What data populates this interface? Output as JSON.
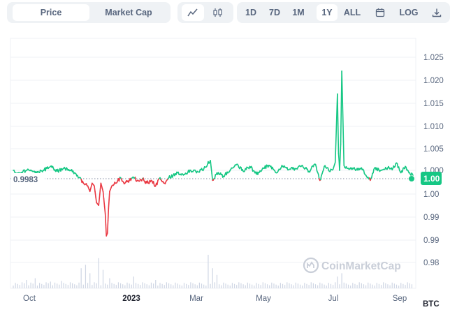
{
  "toolbar": {
    "view_tabs": [
      {
        "label": "Price",
        "active": true
      },
      {
        "label": "Market Cap",
        "active": false
      }
    ],
    "chart_types": [
      {
        "icon": "line-chart-icon",
        "active": true
      },
      {
        "icon": "candlestick-icon",
        "active": false
      }
    ],
    "ranges": [
      {
        "label": "1D",
        "active": false
      },
      {
        "label": "7D",
        "active": false
      },
      {
        "label": "1M",
        "active": false
      },
      {
        "label": "1Y",
        "active": true
      },
      {
        "label": "ALL",
        "active": false
      }
    ],
    "calendar_icon": "calendar-icon",
    "log_label": "LOG",
    "download_icon": "download-icon"
  },
  "colors": {
    "up": "#16c784",
    "down": "#ea3943",
    "volume": "#cfd6e4",
    "grid": "#eff2f5",
    "reference": "#858ca2",
    "current_badge": "#16c784"
  },
  "watermark": "CoinMarketCap",
  "reference_label": "0.9983",
  "current_label": "1.00",
  "quote_currency": "BTC",
  "chart_data": {
    "type": "line",
    "reference_value": 0.9983,
    "current_value": 1.0,
    "y_ticks": [
      "1.025",
      "1.020",
      "1.015",
      "1.010",
      "1.005",
      "1.000",
      "1.00",
      "0.99",
      "0.99",
      "0.98"
    ],
    "x_ticks": [
      "Oct",
      "2023",
      "Mar",
      "May",
      "Jul",
      "Sep"
    ],
    "ylim": [
      0.972,
      1.027
    ],
    "xlim": [
      0,
      365
    ],
    "price_anchors": [
      [
        0,
        1.0
      ],
      [
        6,
        0.9993
      ],
      [
        12,
        1.0
      ],
      [
        20,
        0.9995
      ],
      [
        28,
        1.0
      ],
      [
        34,
        1.0008
      ],
      [
        40,
        0.9998
      ],
      [
        46,
        1.0004
      ],
      [
        52,
        1.0
      ],
      [
        56,
        0.9995
      ],
      [
        60,
        0.9985
      ],
      [
        64,
        0.9975
      ],
      [
        68,
        0.997
      ],
      [
        70,
        0.996
      ],
      [
        72,
        0.9975
      ],
      [
        74,
        0.997
      ],
      [
        76,
        0.994
      ],
      [
        78,
        0.9935
      ],
      [
        80,
        0.9975
      ],
      [
        82,
        0.996
      ],
      [
        84,
        0.992
      ],
      [
        85,
        0.988
      ],
      [
        86,
        0.9885
      ],
      [
        87,
        0.993
      ],
      [
        88,
        0.996
      ],
      [
        90,
        0.997
      ],
      [
        94,
        0.9975
      ],
      [
        98,
        0.9985
      ],
      [
        102,
        0.9975
      ],
      [
        106,
        0.998
      ],
      [
        110,
        0.9985
      ],
      [
        114,
        0.998
      ],
      [
        118,
        0.9983
      ],
      [
        122,
        0.9975
      ],
      [
        126,
        0.998
      ],
      [
        130,
        0.997
      ],
      [
        134,
        0.9985
      ],
      [
        138,
        0.9975
      ],
      [
        142,
        0.9985
      ],
      [
        146,
        0.999
      ],
      [
        150,
        0.9995
      ],
      [
        156,
        0.9992
      ],
      [
        162,
        1.0
      ],
      [
        168,
        0.9998
      ],
      [
        174,
        1.0003
      ],
      [
        180,
        1.002
      ],
      [
        182,
        0.998
      ],
      [
        186,
        0.9995
      ],
      [
        192,
        0.9988
      ],
      [
        198,
        1.0
      ],
      [
        204,
        1.0012
      ],
      [
        210,
        0.9998
      ],
      [
        216,
        1.0008
      ],
      [
        222,
        0.9992
      ],
      [
        228,
        1.0005
      ],
      [
        234,
        1.001
      ],
      [
        240,
        0.9995
      ],
      [
        246,
        1.0008
      ],
      [
        252,
        1.0002
      ],
      [
        258,
        1.0003
      ],
      [
        264,
        1.001
      ],
      [
        270,
        0.9998
      ],
      [
        276,
        1.0012
      ],
      [
        280,
        0.998
      ],
      [
        284,
        1.0008
      ],
      [
        288,
        1.0
      ],
      [
        292,
        1.0002
      ],
      [
        294,
        1.0016
      ],
      [
        296,
        1.017
      ],
      [
        297,
        1.004
      ],
      [
        298,
        1.0
      ],
      [
        299,
        1.006
      ],
      [
        300,
        1.022
      ],
      [
        301,
        1.012
      ],
      [
        302,
        1.001
      ],
      [
        306,
        1.0004
      ],
      [
        312,
        1.0002
      ],
      [
        318,
        1.0005
      ],
      [
        322,
        0.999
      ],
      [
        326,
        0.998
      ],
      [
        330,
        1.0005
      ],
      [
        336,
        1.0
      ],
      [
        342,
        1.0005
      ],
      [
        346,
        1.0001
      ],
      [
        350,
        1.0015
      ],
      [
        354,
        0.9995
      ],
      [
        358,
        1.0008
      ],
      [
        362,
        0.9995
      ],
      [
        365,
        0.999
      ]
    ],
    "volume_spikes": [
      [
        55,
        0.95
      ],
      [
        62,
        0.6
      ],
      [
        66,
        0.7
      ],
      [
        70,
        0.45
      ],
      [
        78,
        0.9
      ],
      [
        82,
        0.55
      ],
      [
        88,
        0.3
      ],
      [
        110,
        0.35
      ],
      [
        130,
        0.25
      ],
      [
        178,
        1.0
      ],
      [
        182,
        0.6
      ],
      [
        186,
        0.4
      ],
      [
        296,
        0.35
      ],
      [
        300,
        0.45
      ],
      [
        12,
        0.25
      ],
      [
        20,
        0.3
      ],
      [
        34,
        0.2
      ],
      [
        44,
        0.22
      ]
    ]
  }
}
